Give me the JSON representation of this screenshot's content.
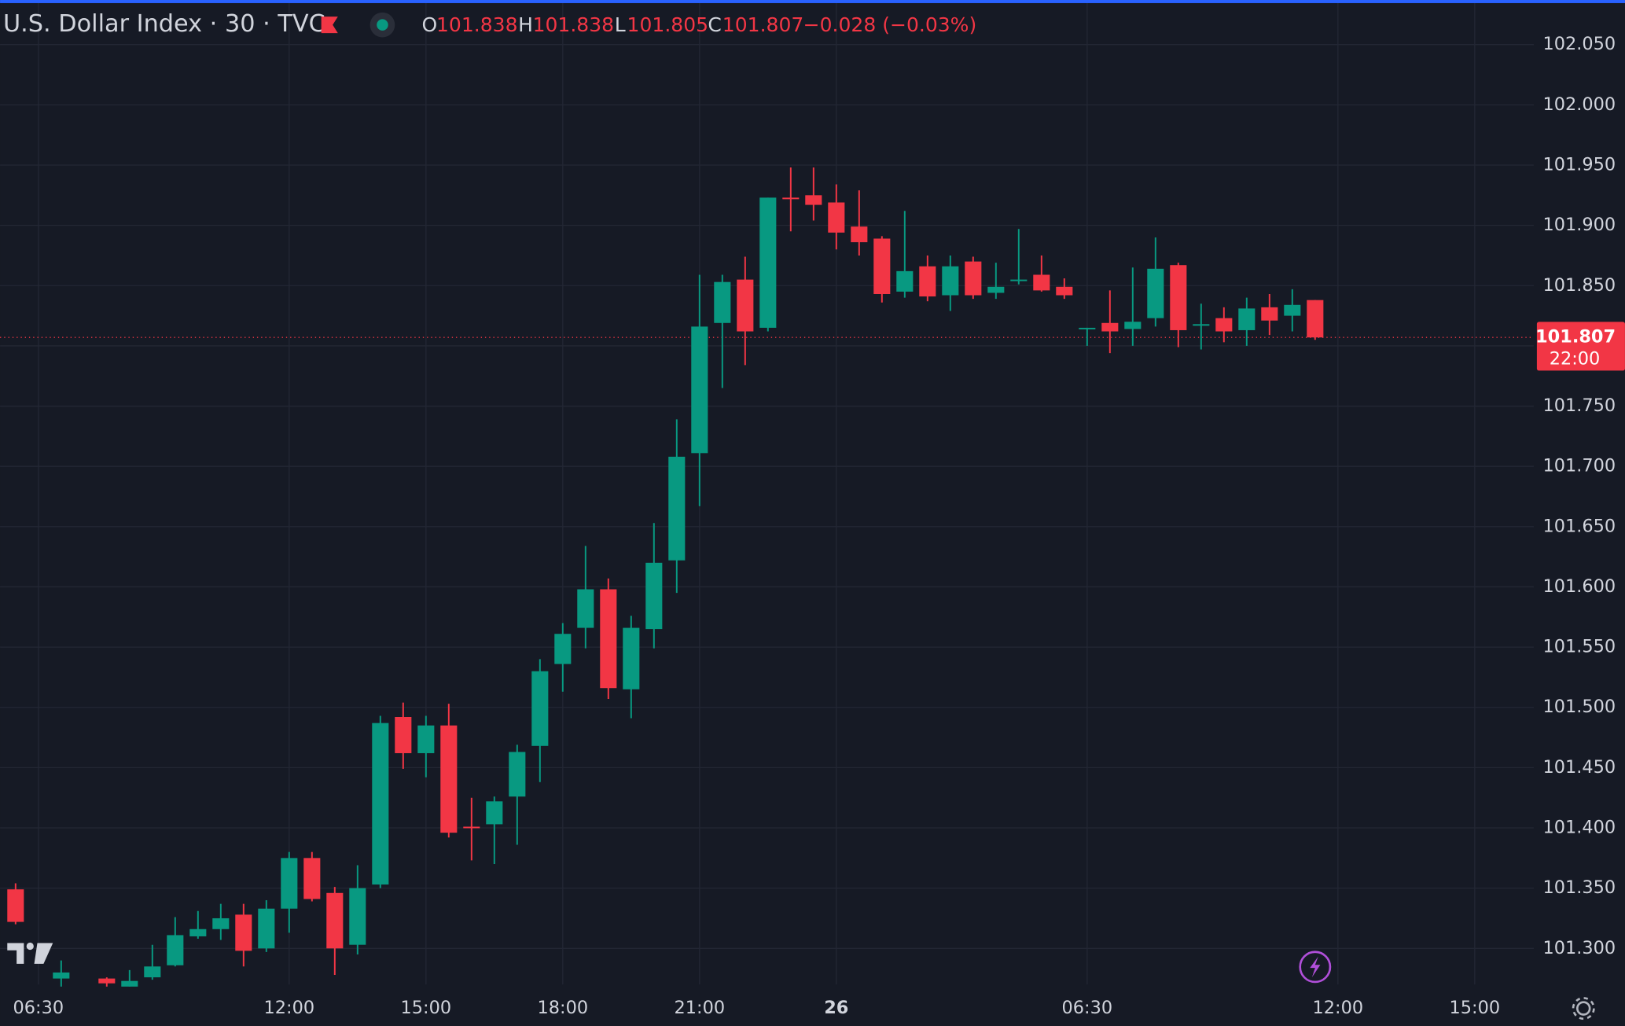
{
  "chart_data": {
    "type": "candlestick",
    "title": "U.S. Dollar Index · 30 · TVC",
    "ohlc_labels": [
      "O",
      "H",
      "L",
      "C"
    ],
    "change_label": "−0.028 (−0.03%)",
    "countdown": "22:00",
    "up_color": "#089981",
    "down_color": "#f23645",
    "categories": [
      null,
      "06:30",
      null,
      null,
      null,
      null,
      null,
      null,
      null,
      null,
      null,
      null,
      "12:00",
      null,
      null,
      null,
      null,
      null,
      "15:00",
      null,
      null,
      null,
      null,
      null,
      "18:00",
      null,
      null,
      null,
      null,
      null,
      "21:00",
      null,
      null,
      null,
      null,
      null,
      "26",
      null,
      null,
      null,
      null,
      null,
      null,
      null,
      null,
      null,
      null,
      "06:30",
      null,
      null,
      null,
      null,
      null,
      null,
      null,
      null,
      null,
      null,
      "12:00",
      null,
      null,
      null,
      null,
      null,
      "15:00"
    ],
    "open": [
      101.349,
      null,
      101.275,
      null,
      101.275,
      101.268,
      101.276,
      101.286,
      101.31,
      101.316,
      101.328,
      101.3,
      101.333,
      101.375,
      101.346,
      101.303,
      101.353,
      101.492,
      101.462,
      101.485,
      101.401,
      101.403,
      101.426,
      101.468,
      101.536,
      101.566,
      101.598,
      101.515,
      101.565,
      101.622,
      101.711,
      101.819,
      101.855,
      101.815,
      101.923,
      101.925,
      101.919,
      101.899,
      101.889,
      101.845,
      101.866,
      101.842,
      101.87,
      101.844,
      101.854,
      101.859,
      101.849,
      101.814,
      101.819,
      101.814,
      101.823,
      101.867,
      101.817,
      101.823,
      101.813,
      101.832,
      101.825,
      101.838,
      null,
      null,
      null,
      null,
      null,
      null,
      null
    ],
    "high": [
      101.354,
      null,
      101.29,
      null,
      101.276,
      101.282,
      101.303,
      101.326,
      101.331,
      101.337,
      101.337,
      101.34,
      101.38,
      101.38,
      101.351,
      101.369,
      101.493,
      101.504,
      101.493,
      101.503,
      101.425,
      101.426,
      101.469,
      101.54,
      101.57,
      101.634,
      101.607,
      101.576,
      101.653,
      101.739,
      101.859,
      101.859,
      101.874,
      101.923,
      101.948,
      101.948,
      101.934,
      101.929,
      101.891,
      101.912,
      101.875,
      101.875,
      101.874,
      101.869,
      101.897,
      101.875,
      101.856,
      101.815,
      101.846,
      101.865,
      101.89,
      101.869,
      101.835,
      101.832,
      101.84,
      101.843,
      101.847,
      101.838,
      null,
      null,
      null,
      null,
      null,
      null,
      null
    ],
    "low": [
      101.32,
      null,
      101.265,
      null,
      101.265,
      101.265,
      101.274,
      101.285,
      101.308,
      101.307,
      101.285,
      101.297,
      101.313,
      101.339,
      101.278,
      101.295,
      101.35,
      101.449,
      101.442,
      101.392,
      101.373,
      101.37,
      101.386,
      101.438,
      101.513,
      101.549,
      101.507,
      101.491,
      101.549,
      101.595,
      101.667,
      101.765,
      101.784,
      101.812,
      101.895,
      101.904,
      101.88,
      101.875,
      101.836,
      101.84,
      101.837,
      101.829,
      101.839,
      101.839,
      101.851,
      101.845,
      101.839,
      101.8,
      101.794,
      101.8,
      101.816,
      101.799,
      101.797,
      101.803,
      101.8,
      101.809,
      101.812,
      101.805,
      null,
      null,
      null,
      null,
      null,
      null,
      null
    ],
    "close": [
      101.322,
      null,
      101.28,
      null,
      101.271,
      101.273,
      101.285,
      101.311,
      101.316,
      101.325,
      101.298,
      101.333,
      101.375,
      101.341,
      101.3,
      101.35,
      101.487,
      101.462,
      101.485,
      101.396,
      101.4,
      101.422,
      101.463,
      101.53,
      101.561,
      101.598,
      101.516,
      101.566,
      101.62,
      101.708,
      101.816,
      101.853,
      101.812,
      101.923,
      101.922,
      101.917,
      101.894,
      101.886,
      101.843,
      101.862,
      101.841,
      101.866,
      101.842,
      101.849,
      101.855,
      101.846,
      101.842,
      101.815,
      101.812,
      101.82,
      101.864,
      101.813,
      101.818,
      101.812,
      101.831,
      101.821,
      101.834,
      101.807,
      null,
      null,
      null,
      null,
      null,
      null,
      null
    ],
    "ylim": [
      101.27,
      102.087
    ],
    "yticks": [
      {
        "value": 101.3,
        "label": "101.300"
      },
      {
        "value": 101.35,
        "label": "101.350"
      },
      {
        "value": 101.4,
        "label": "101.400"
      },
      {
        "value": 101.45,
        "label": "101.450"
      },
      {
        "value": 101.5,
        "label": "101.500"
      },
      {
        "value": 101.55,
        "label": "101.550"
      },
      {
        "value": 101.6,
        "label": "101.600"
      },
      {
        "value": 101.65,
        "label": "101.650"
      },
      {
        "value": 101.7,
        "label": "101.700"
      },
      {
        "value": 101.75,
        "label": "101.750"
      },
      {
        "value": 101.8,
        "label": "101.800"
      },
      {
        "value": 101.85,
        "label": "101.850"
      },
      {
        "value": 101.9,
        "label": "101.900"
      },
      {
        "value": 101.95,
        "label": "101.950"
      },
      {
        "value": 102.0,
        "label": "102.000"
      },
      {
        "value": 102.05,
        "label": "102.050"
      }
    ],
    "grid": true
  }
}
